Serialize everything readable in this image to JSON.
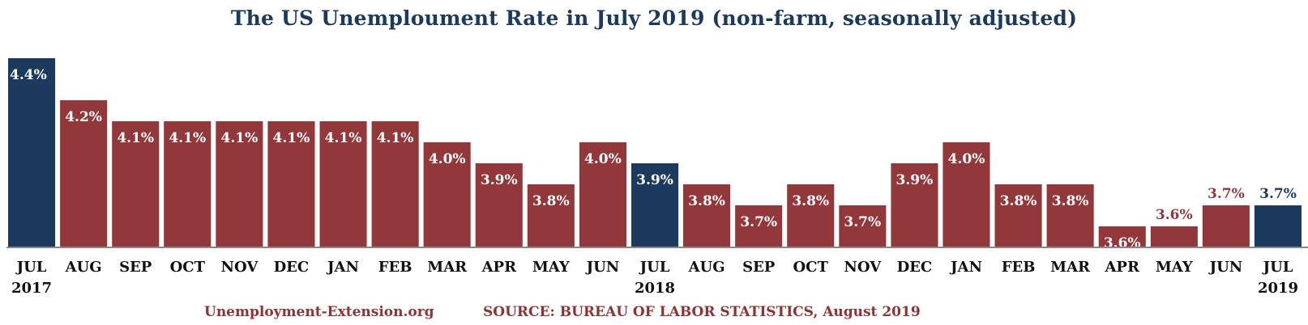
{
  "colors": {
    "highlight": "#1b3a5e",
    "normal": "#93383a",
    "title": "#1b3a5e",
    "footer": "#8e3333",
    "label_inside": "#ffffff"
  },
  "footer": {
    "site": "Unemployment-Extension.org",
    "source": "SOURCE: BUREAU OF LABOR STATISTICS, August 2019"
  },
  "chart_data": {
    "type": "bar",
    "title": "The US Unemploument Rate in July 2019 (non-farm, seasonally adjusted)",
    "xlabel": "",
    "ylabel": "",
    "categories": [
      "JUL",
      "AUG",
      "SEP",
      "OCT",
      "NOV",
      "DEC",
      "JAN",
      "FEB",
      "MAR",
      "APR",
      "MAY",
      "JUN",
      "JUL",
      "AUG",
      "SEP",
      "OCT",
      "NOV",
      "DEC",
      "JAN",
      "FEB",
      "MAR",
      "APR",
      "MAY",
      "JUN",
      "JUL"
    ],
    "year_labels": [
      "2017",
      "",
      "",
      "",
      "",
      "",
      "",
      "",
      "",
      "",
      "",
      "",
      "2018",
      "",
      "",
      "",
      "",
      "",
      "",
      "",
      "",
      "",
      "",
      "",
      "2019"
    ],
    "values": [
      4.4,
      4.2,
      4.1,
      4.1,
      4.1,
      4.1,
      4.1,
      4.1,
      4.0,
      3.9,
      3.8,
      4.0,
      3.9,
      3.8,
      3.7,
      3.8,
      3.7,
      3.9,
      4.0,
      3.8,
      3.8,
      3.6,
      3.6,
      3.7,
      3.7
    ],
    "data_labels": [
      "4.4%",
      "4.2%",
      "4.1%",
      "4.1%",
      "4.1%",
      "4.1%",
      "4.1%",
      "4.1%",
      "4.0%",
      "3.9%",
      "3.8%",
      "4.0%",
      "3.9%",
      "3.8%",
      "3.7%",
      "3.8%",
      "3.7%",
      "3.9%",
      "4.0%",
      "3.8%",
      "3.8%",
      "3.6%",
      "3.6%",
      "3.7%",
      "3.7%"
    ],
    "highlighted": [
      0,
      12,
      24
    ],
    "labels_above": [
      22,
      23,
      24
    ],
    "ylim": [
      3.5,
      4.4
    ],
    "grid": false,
    "legend": "none"
  }
}
